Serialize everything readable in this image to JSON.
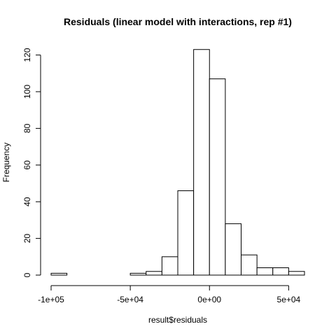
{
  "chart_data": {
    "type": "bar",
    "title": "Residuals (linear model with interactions, rep #1)",
    "xlabel": "result$residuals",
    "ylabel": "Frequency",
    "bin_width": 10000,
    "bins": [
      {
        "start": -100000,
        "end": -90000,
        "count": 1
      },
      {
        "start": -90000,
        "end": -80000,
        "count": 0
      },
      {
        "start": -80000,
        "end": -70000,
        "count": 0
      },
      {
        "start": -70000,
        "end": -60000,
        "count": 0
      },
      {
        "start": -60000,
        "end": -50000,
        "count": 0
      },
      {
        "start": -50000,
        "end": -40000,
        "count": 1
      },
      {
        "start": -40000,
        "end": -30000,
        "count": 2
      },
      {
        "start": -30000,
        "end": -20000,
        "count": 10
      },
      {
        "start": -20000,
        "end": -10000,
        "count": 46
      },
      {
        "start": -10000,
        "end": 0,
        "count": 123
      },
      {
        "start": 0,
        "end": 10000,
        "count": 107
      },
      {
        "start": 10000,
        "end": 20000,
        "count": 28
      },
      {
        "start": 20000,
        "end": 30000,
        "count": 11
      },
      {
        "start": 30000,
        "end": 40000,
        "count": 4
      },
      {
        "start": 40000,
        "end": 50000,
        "count": 4
      },
      {
        "start": 50000,
        "end": 60000,
        "count": 2
      }
    ],
    "xlim": [
      -100000,
      60000
    ],
    "ylim": [
      0,
      123
    ],
    "x_ticks": [
      {
        "value": -100000,
        "label": "-1e+05"
      },
      {
        "value": -50000,
        "label": "-5e+04"
      },
      {
        "value": 0,
        "label": "0e+00"
      },
      {
        "value": 50000,
        "label": "5e+04"
      }
    ],
    "y_ticks": [
      {
        "value": 0,
        "label": "0"
      },
      {
        "value": 20,
        "label": "20"
      },
      {
        "value": 40,
        "label": "40"
      },
      {
        "value": 60,
        "label": "60"
      },
      {
        "value": 80,
        "label": "80"
      },
      {
        "value": 100,
        "label": "100"
      },
      {
        "value": 120,
        "label": "120"
      }
    ],
    "grid": false,
    "bar_fill": "#ffffff",
    "bar_stroke": "#000000"
  }
}
